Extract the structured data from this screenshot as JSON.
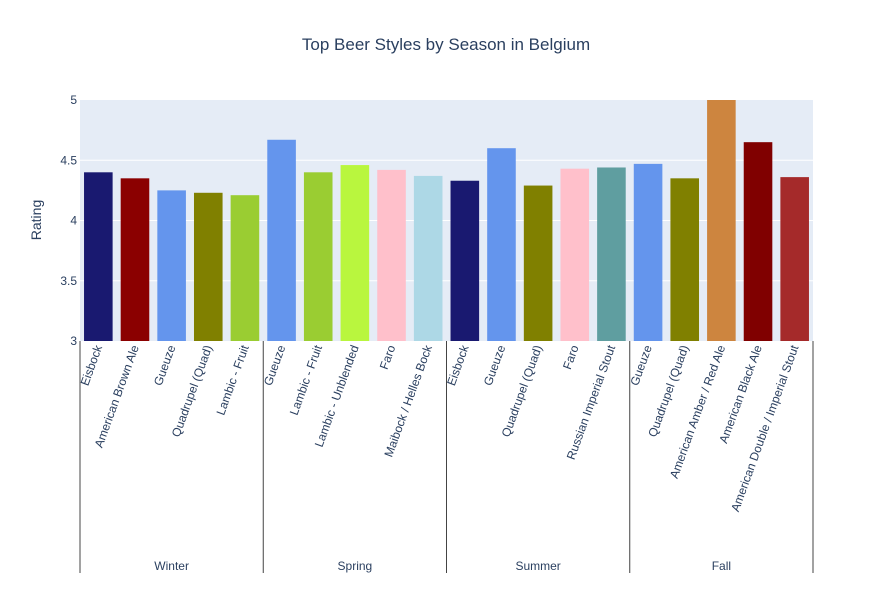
{
  "chart_data": {
    "type": "bar",
    "title": "Top Beer Styles by Season in Belgium",
    "xlabel": "",
    "ylabel": "Rating",
    "ylim": [
      3,
      5
    ],
    "yticks": [
      "3",
      "3.5",
      "4",
      "4.5",
      "5"
    ],
    "grid": true,
    "plot_background": "#e5ecf6",
    "groups": [
      {
        "name": "Winter",
        "bars": [
          {
            "label": "Eisbock",
            "value": 4.4,
            "color": "#191970"
          },
          {
            "label": "American Brown Ale",
            "value": 4.35,
            "color": "#8b0000"
          },
          {
            "label": "Gueuze",
            "value": 4.25,
            "color": "#6495ed"
          },
          {
            "label": "Quadrupel (Quad)",
            "value": 4.23,
            "color": "#808000"
          },
          {
            "label": "Lambic - Fruit",
            "value": 4.21,
            "color": "#9acd32"
          }
        ]
      },
      {
        "name": "Spring",
        "bars": [
          {
            "label": "Gueuze",
            "value": 4.67,
            "color": "#6495ed"
          },
          {
            "label": "Lambic - Fruit",
            "value": 4.4,
            "color": "#9acd32"
          },
          {
            "label": "Lambic - Unblended",
            "value": 4.46,
            "color": "#b9f63e"
          },
          {
            "label": "Faro",
            "value": 4.42,
            "color": "#ffc0cb"
          },
          {
            "label": "Maibock / Helles Bock",
            "value": 4.37,
            "color": "#add8e6"
          }
        ]
      },
      {
        "name": "Summer",
        "bars": [
          {
            "label": "Eisbock",
            "value": 4.33,
            "color": "#191970"
          },
          {
            "label": "Gueuze",
            "value": 4.6,
            "color": "#6495ed"
          },
          {
            "label": "Quadrupel (Quad)",
            "value": 4.29,
            "color": "#808000"
          },
          {
            "label": "Faro",
            "value": 4.43,
            "color": "#ffc0cb"
          },
          {
            "label": "Russian Imperial Stout",
            "value": 4.44,
            "color": "#5f9ea0"
          }
        ]
      },
      {
        "name": "Fall",
        "bars": [
          {
            "label": "Gueuze",
            "value": 4.47,
            "color": "#6495ed"
          },
          {
            "label": "Quadrupel (Quad)",
            "value": 4.35,
            "color": "#808000"
          },
          {
            "label": "American Amber / Red Ale",
            "value": 5.0,
            "color": "#cd853f"
          },
          {
            "label": "American Black Ale",
            "value": 4.65,
            "color": "#800000"
          },
          {
            "label": "American Double / Imperial Stout",
            "value": 4.36,
            "color": "#a52a2a"
          }
        ]
      }
    ]
  }
}
